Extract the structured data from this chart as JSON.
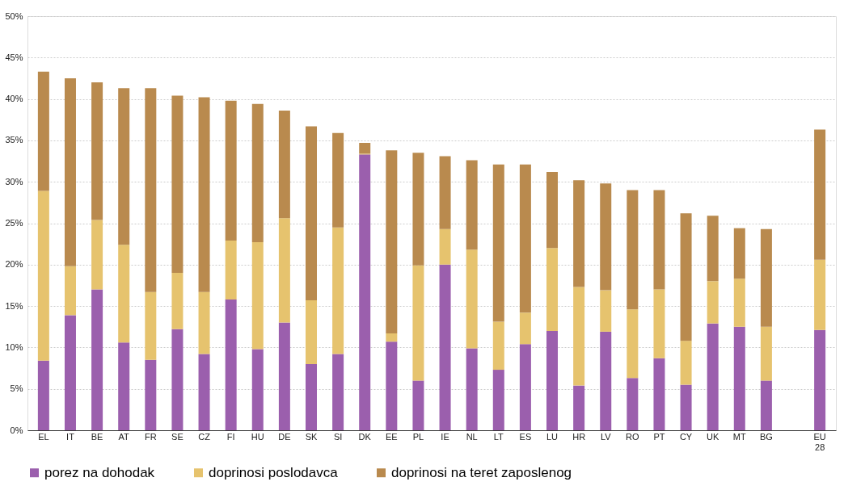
{
  "chart_data": {
    "type": "bar",
    "stacked": true,
    "categories": [
      "EL",
      "IT",
      "BE",
      "AT",
      "FR",
      "SE",
      "CZ",
      "FI",
      "HU",
      "DE",
      "SK",
      "SI",
      "DK",
      "EE",
      "PL",
      "IE",
      "NL",
      "LT",
      "ES",
      "LU",
      "HR",
      "LV",
      "RO",
      "PT",
      "CY",
      "UK",
      "MT",
      "BG",
      null,
      "EU 28"
    ],
    "series": [
      {
        "name": "porez na dohodak",
        "color": "#9b5fad",
        "values": [
          8.4,
          13.9,
          17.0,
          10.6,
          8.5,
          12.2,
          9.2,
          15.8,
          9.8,
          13.0,
          8.0,
          9.2,
          33.3,
          10.7,
          6.0,
          20.0,
          9.9,
          7.3,
          10.4,
          12.0,
          5.4,
          11.9,
          6.3,
          8.7,
          5.5,
          12.9,
          12.5,
          6.0,
          null,
          12.1
        ]
      },
      {
        "name": "doprinosi poslodavca",
        "color": "#e6c36e",
        "values": [
          20.5,
          5.9,
          8.4,
          11.8,
          8.2,
          6.8,
          7.5,
          7.1,
          12.9,
          12.6,
          7.7,
          15.3,
          0.1,
          1.0,
          13.9,
          4.3,
          11.9,
          5.8,
          3.8,
          10.0,
          11.9,
          5.0,
          8.3,
          8.3,
          5.3,
          5.1,
          5.8,
          6.5,
          null,
          8.5
        ]
      },
      {
        "name": "doprinosi na teret zaposlenog",
        "color": "#b98a4e",
        "values": [
          14.4,
          22.7,
          16.6,
          18.9,
          24.6,
          21.4,
          23.5,
          16.9,
          16.7,
          13.0,
          21.0,
          11.4,
          1.3,
          22.1,
          13.6,
          8.8,
          10.8,
          19.0,
          17.9,
          9.2,
          12.9,
          12.9,
          14.4,
          12.0,
          15.4,
          7.9,
          6.1,
          11.8,
          null,
          15.7
        ]
      }
    ],
    "ylim": [
      0,
      50
    ],
    "yticks": [
      {
        "value": 0,
        "label": "0%"
      },
      {
        "value": 5,
        "label": "5%"
      },
      {
        "value": 10,
        "label": "10%"
      },
      {
        "value": 15,
        "label": "15%"
      },
      {
        "value": 20,
        "label": "20%"
      },
      {
        "value": 25,
        "label": "25%"
      },
      {
        "value": 30,
        "label": "30%"
      },
      {
        "value": 35,
        "label": "35%"
      },
      {
        "value": 40,
        "label": "40%"
      },
      {
        "value": 45,
        "label": "45%"
      },
      {
        "value": 50,
        "label": "50%"
      }
    ],
    "grid": "y",
    "legend": "bottom"
  }
}
